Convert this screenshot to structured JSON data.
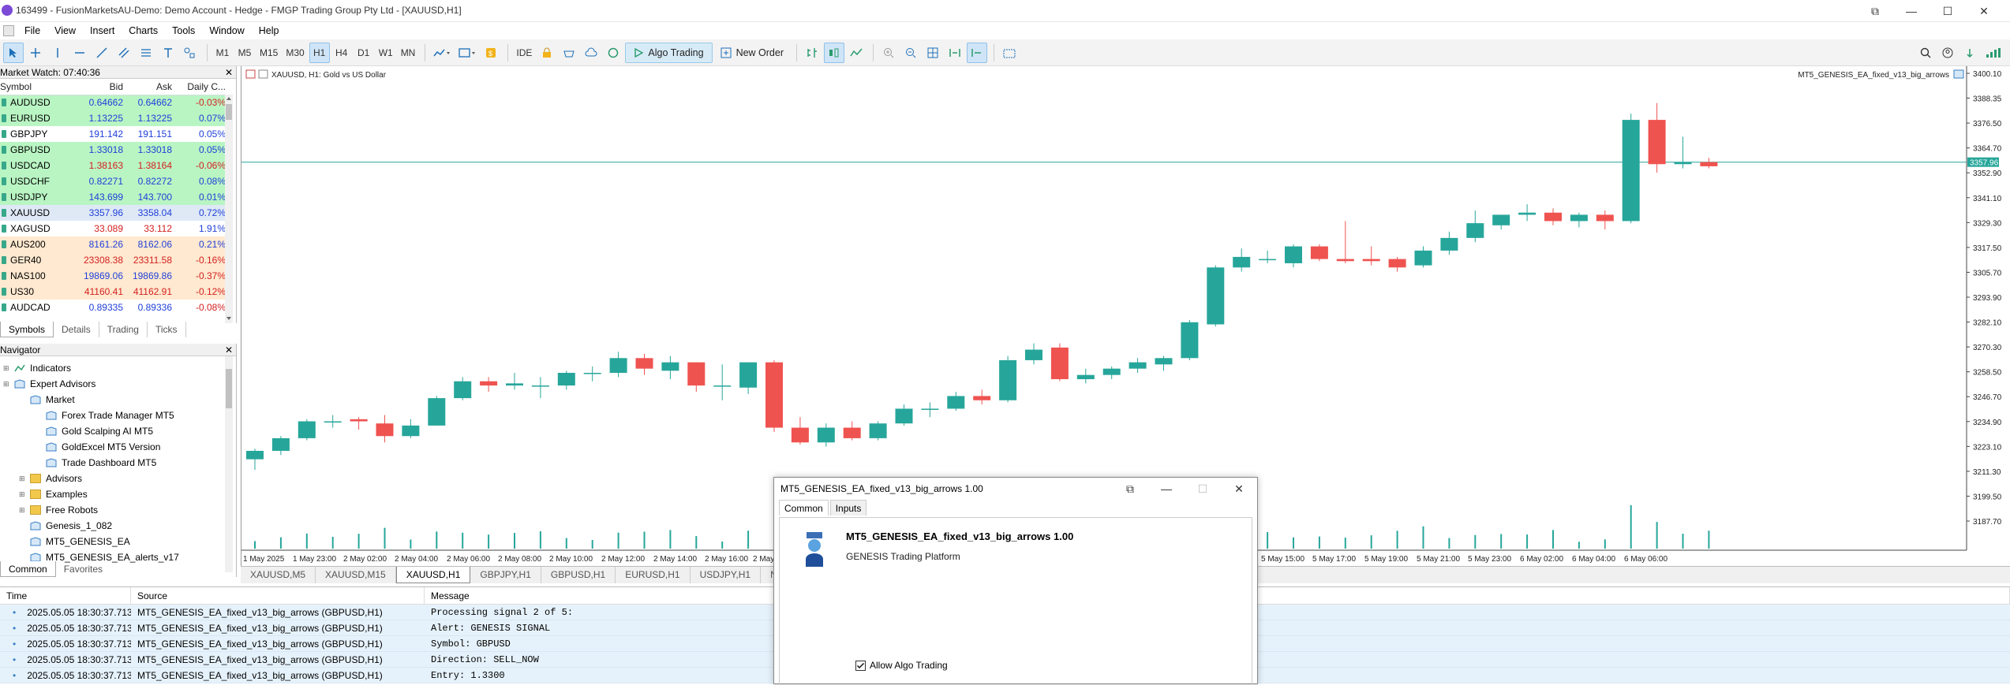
{
  "window": {
    "title": "163499 - FusionMarketsAU-Demo: Demo Account - Hedge - FMGP Trading Group Pty Ltd - [XAUUSD,H1]",
    "controls": [
      "⧉",
      "—",
      "☐",
      "✕"
    ]
  },
  "menu": [
    "File",
    "View",
    "Insert",
    "Charts",
    "Tools",
    "Window",
    "Help"
  ],
  "toolbar": {
    "timeframes": [
      "M1",
      "M5",
      "M15",
      "M30",
      "H1",
      "H4",
      "D1",
      "W1",
      "MN"
    ],
    "active_timeframe": "H1",
    "ide_label": "IDE",
    "algo_label": "Algo Trading",
    "new_order_label": "New Order"
  },
  "market_watch": {
    "header": "Market Watch: 07:40:36",
    "columns": [
      "Symbol",
      "Bid",
      "Ask",
      "Daily C..."
    ],
    "rows": [
      {
        "symbol": "AUDUSD",
        "bid": "0.64662",
        "ask": "0.64662",
        "change": "-0.03%",
        "bg": "#b9f5c3",
        "fg": "#1e3fd9",
        "chg": "#d32020"
      },
      {
        "symbol": "EURUSD",
        "bid": "1.13225",
        "ask": "1.13225",
        "change": "0.07%",
        "bg": "#b9f5c3",
        "fg": "#1e3fd9",
        "chg": "#1e3fd9"
      },
      {
        "symbol": "GBPJPY",
        "bid": "191.142",
        "ask": "191.151",
        "change": "0.05%",
        "bg": "#ffffff",
        "fg": "#1e3fd9",
        "chg": "#1e3fd9"
      },
      {
        "symbol": "GBPUSD",
        "bid": "1.33018",
        "ask": "1.33018",
        "change": "0.05%",
        "bg": "#b9f5c3",
        "fg": "#1e3fd9",
        "chg": "#1e3fd9"
      },
      {
        "symbol": "USDCAD",
        "bid": "1.38163",
        "ask": "1.38164",
        "change": "-0.06%",
        "bg": "#b9f5c3",
        "fg": "#d32020",
        "chg": "#d32020"
      },
      {
        "symbol": "USDCHF",
        "bid": "0.82271",
        "ask": "0.82272",
        "change": "0.08%",
        "bg": "#b9f5c3",
        "fg": "#1e3fd9",
        "chg": "#1e3fd9"
      },
      {
        "symbol": "USDJPY",
        "bid": "143.699",
        "ask": "143.700",
        "change": "0.01%",
        "bg": "#b9f5c3",
        "fg": "#1e3fd9",
        "chg": "#1e3fd9"
      },
      {
        "symbol": "XAUUSD",
        "bid": "3357.96",
        "ask": "3358.04",
        "change": "0.72%",
        "bg": "#dfe9f6",
        "fg": "#1e3fd9",
        "chg": "#1e3fd9"
      },
      {
        "symbol": "XAGUSD",
        "bid": "33.089",
        "ask": "33.112",
        "change": "1.91%",
        "bg": "#ffffff",
        "fg": "#d32020",
        "chg": "#1e3fd9"
      },
      {
        "symbol": "AUS200",
        "bid": "8161.26",
        "ask": "8162.06",
        "change": "0.21%",
        "bg": "#ffe9d0",
        "fg": "#1e3fd9",
        "chg": "#1e3fd9"
      },
      {
        "symbol": "GER40",
        "bid": "23308.38",
        "ask": "23311.58",
        "change": "-0.16%",
        "bg": "#ffe9d0",
        "fg": "#d32020",
        "chg": "#d32020"
      },
      {
        "symbol": "NAS100",
        "bid": "19869.06",
        "ask": "19869.86",
        "change": "-0.37%",
        "bg": "#ffe9d0",
        "fg": "#1e3fd9",
        "chg": "#d32020"
      },
      {
        "symbol": "US30",
        "bid": "41160.41",
        "ask": "41162.91",
        "change": "-0.12%",
        "bg": "#ffe9d0",
        "fg": "#d32020",
        "chg": "#d32020"
      },
      {
        "symbol": "AUDCAD",
        "bid": "0.89335",
        "ask": "0.89336",
        "change": "-0.08%",
        "bg": "#ffffff",
        "fg": "#1e3fd9",
        "chg": "#d32020"
      }
    ],
    "tabs": [
      "Symbols",
      "Details",
      "Trading",
      "Ticks"
    ]
  },
  "navigator": {
    "header": "Navigator",
    "items": [
      {
        "label": "Indicators",
        "indent": 0,
        "icon": "indicators"
      },
      {
        "label": "Expert Advisors",
        "indent": 0,
        "icon": "ea"
      },
      {
        "label": "Market",
        "indent": 1,
        "icon": "ea"
      },
      {
        "label": "Forex Trade Manager MT5",
        "indent": 2,
        "icon": "ea"
      },
      {
        "label": "Gold Scalping AI MT5",
        "indent": 2,
        "icon": "ea"
      },
      {
        "label": "GoldExcel MT5 Version",
        "indent": 2,
        "icon": "ea"
      },
      {
        "label": "Trade Dashboard MT5",
        "indent": 2,
        "icon": "ea"
      },
      {
        "label": "Advisors",
        "indent": 1,
        "icon": "folder"
      },
      {
        "label": "Examples",
        "indent": 1,
        "icon": "folder"
      },
      {
        "label": "Free Robots",
        "indent": 1,
        "icon": "folder"
      },
      {
        "label": "Genesis_1_082",
        "indent": 1,
        "icon": "ea"
      },
      {
        "label": "MT5_GENESIS_EA",
        "indent": 1,
        "icon": "ea"
      },
      {
        "label": "MT5_GENESIS_EA_alerts_v17",
        "indent": 1,
        "icon": "ea"
      }
    ],
    "tabs": [
      "Common",
      "Favorites"
    ]
  },
  "chart": {
    "symbol_label": "XAUUSD, H1:  Gold vs US Dollar",
    "ea_label": "MT5_GENESIS_EA_fixed_v13_big_arrows",
    "price_labels": [
      "3400.10",
      "3388.35",
      "3376.50",
      "3364.70",
      "3352.90",
      "3341.10",
      "3329.30",
      "3317.50",
      "3305.70",
      "3293.90",
      "3282.10",
      "3270.30",
      "3258.50",
      "3246.70",
      "3234.90",
      "3223.10",
      "3211.30",
      "3199.50",
      "3187.70"
    ],
    "current_price": "3357.96",
    "time_labels": [
      "1 May 2025",
      "1 May 23:00",
      "2 May 02:00",
      "2 May 04:00",
      "2 May 06:00",
      "2 May 08:00",
      "2 May 10:00",
      "2 May 12:00",
      "2 May 14:00",
      "2 May 16:00",
      "2 May",
      "5 May 15:00",
      "5 May 17:00",
      "5 May 19:00",
      "5 May 21:00",
      "5 May 23:00",
      "6 May 02:00",
      "6 May 04:00",
      "6 May 06:00"
    ],
    "bull_color": "#26a69a",
    "bear_color": "#ef5350"
  },
  "chart_tabs": [
    "XAUUSD,M5",
    "XAUUSD,M15",
    "XAUUSD,H1",
    "GBPJPY,H1",
    "GBPUSD,H1",
    "EURUSD,H1",
    "USDJPY,H1",
    "NAS100,M5"
  ],
  "active_chart_tab": "XAUUSD,H1",
  "log": {
    "columns": [
      "Time",
      "Source",
      "Message"
    ],
    "rows": [
      {
        "time": "2025.05.05 18:30:37.713",
        "source": "MT5_GENESIS_EA_fixed_v13_big_arrows (GBPUSD,H1)",
        "message": "Processing signal 2 of 5:"
      },
      {
        "time": "2025.05.05 18:30:37.713",
        "source": "MT5_GENESIS_EA_fixed_v13_big_arrows (GBPUSD,H1)",
        "message": "Alert: GENESIS SIGNAL"
      },
      {
        "time": "2025.05.05 18:30:37.713",
        "source": "MT5_GENESIS_EA_fixed_v13_big_arrows (GBPUSD,H1)",
        "message": "Symbol: GBPUSD"
      },
      {
        "time": "2025.05.05 18:30:37.713",
        "source": "MT5_GENESIS_EA_fixed_v13_big_arrows (GBPUSD,H1)",
        "message": "Direction: SELL_NOW"
      },
      {
        "time": "2025.05.05 18:30:37.713",
        "source": "MT5_GENESIS_EA_fixed_v13_big_arrows (GBPUSD,H1)",
        "message": "Entry: 1.3300"
      }
    ]
  },
  "dialog": {
    "title": "MT5_GENESIS_EA_fixed_v13_big_arrows 1.00",
    "tabs": [
      "Common",
      "Inputs"
    ],
    "heading": "MT5_GENESIS_EA_fixed_v13_big_arrows 1.00",
    "subheading": "GENESIS Trading Platform",
    "checkbox_label": "Allow Algo Trading",
    "checkbox_checked": true
  }
}
